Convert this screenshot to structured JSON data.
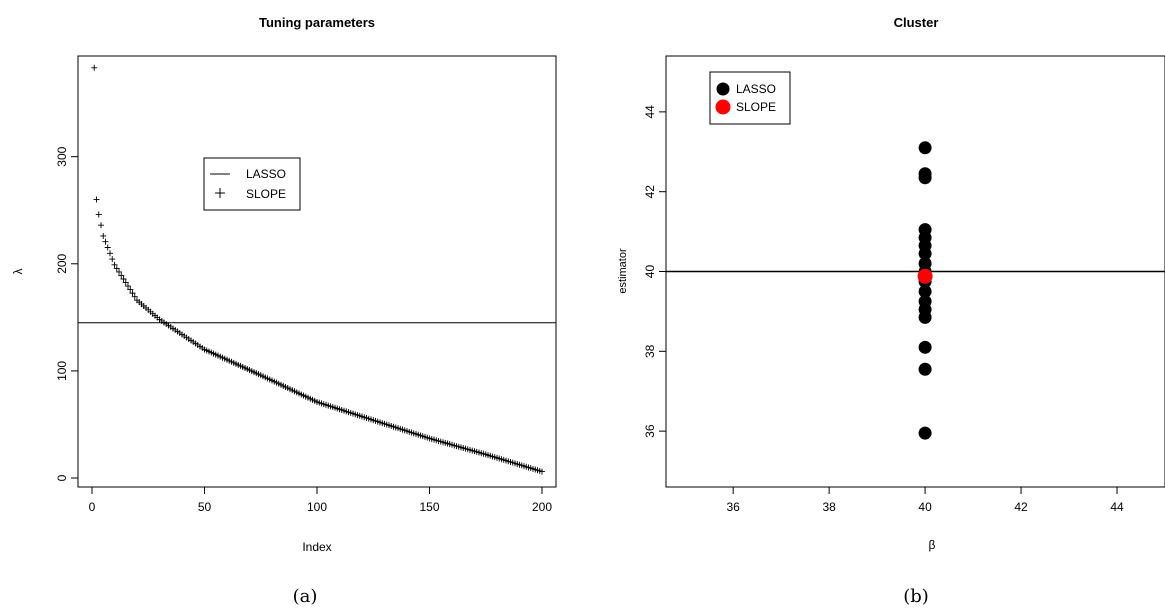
{
  "chart_data": [
    {
      "type": "line",
      "title": "Tuning parameters",
      "xlabel": "Index",
      "ylabel": "λ",
      "xlim": [
        0,
        200
      ],
      "ylim": [
        0,
        380
      ],
      "x_ticks": [
        0,
        50,
        100,
        150,
        200
      ],
      "y_ticks": [
        0,
        100,
        200,
        300
      ],
      "legend": {
        "placement": "upper-middle",
        "entries": [
          "LASSO",
          "SLOPE"
        ]
      },
      "series": [
        {
          "name": "LASSO",
          "kind": "horizontal-line",
          "value": 145
        },
        {
          "name": "SLOPE",
          "kind": "points",
          "marker": "+",
          "n": 200,
          "sample_points": [
            [
              1,
              383
            ],
            [
              2,
              260
            ],
            [
              3,
              246
            ],
            [
              5,
              226
            ],
            [
              10,
              199
            ],
            [
              20,
              166
            ],
            [
              30,
              148
            ],
            [
              50,
              120
            ],
            [
              75,
              96
            ],
            [
              100,
              71
            ],
            [
              125,
              54
            ],
            [
              150,
              37
            ],
            [
              175,
              22
            ],
            [
              200,
              6
            ]
          ]
        }
      ],
      "caption": "(a)"
    },
    {
      "type": "scatter",
      "title": "Cluster",
      "xlabel": "β",
      "ylabel": "estimator",
      "xlim": [
        34.6,
        45.0
      ],
      "ylim": [
        34.6,
        45.4
      ],
      "x_ticks": [
        36,
        38,
        40,
        42,
        44
      ],
      "y_ticks": [
        36,
        38,
        40,
        42,
        44
      ],
      "legend": {
        "placement": "top-left",
        "entries": [
          "LASSO",
          "SLOPE"
        ]
      },
      "hline": 40,
      "series": [
        {
          "name": "LASSO",
          "color": "#000000",
          "points": [
            [
              40,
              43.1
            ],
            [
              40,
              42.45
            ],
            [
              40,
              42.35
            ],
            [
              40,
              41.05
            ],
            [
              40,
              40.85
            ],
            [
              40,
              40.65
            ],
            [
              40,
              40.45
            ],
            [
              40,
              40.2
            ],
            [
              40,
              40.0
            ],
            [
              40,
              39.75
            ],
            [
              40,
              39.5
            ],
            [
              40,
              39.25
            ],
            [
              40,
              39.05
            ],
            [
              40,
              38.85
            ],
            [
              40,
              38.1
            ],
            [
              40,
              37.55
            ],
            [
              40,
              35.95
            ]
          ]
        },
        {
          "name": "SLOPE",
          "color": "#ff0000",
          "points": [
            [
              40,
              39.88
            ]
          ]
        }
      ],
      "caption": "(b)"
    }
  ]
}
